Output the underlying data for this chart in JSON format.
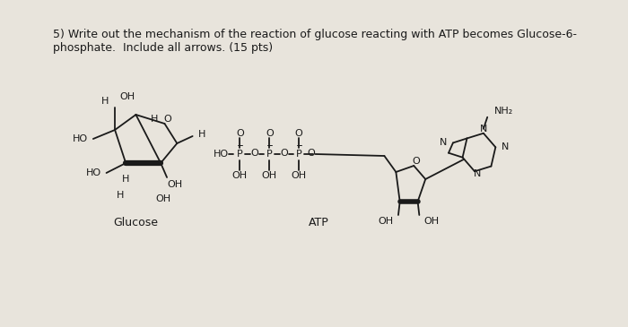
{
  "background_color": "#ccc8c2",
  "paper_color": "#e8e4dc",
  "text_color": "#1a1a1a",
  "title_line1": "5) Write out the mechanism of the reaction of glucose reacting with ATP becomes Glucose-6-",
  "title_line2": "phosphate.  Include all arrows. (15 pts)",
  "label_glucose": "Glucose",
  "label_atp": "ATP",
  "title_fontsize": 9.0,
  "label_fontsize": 9.0,
  "chem_fontsize": 8.0
}
